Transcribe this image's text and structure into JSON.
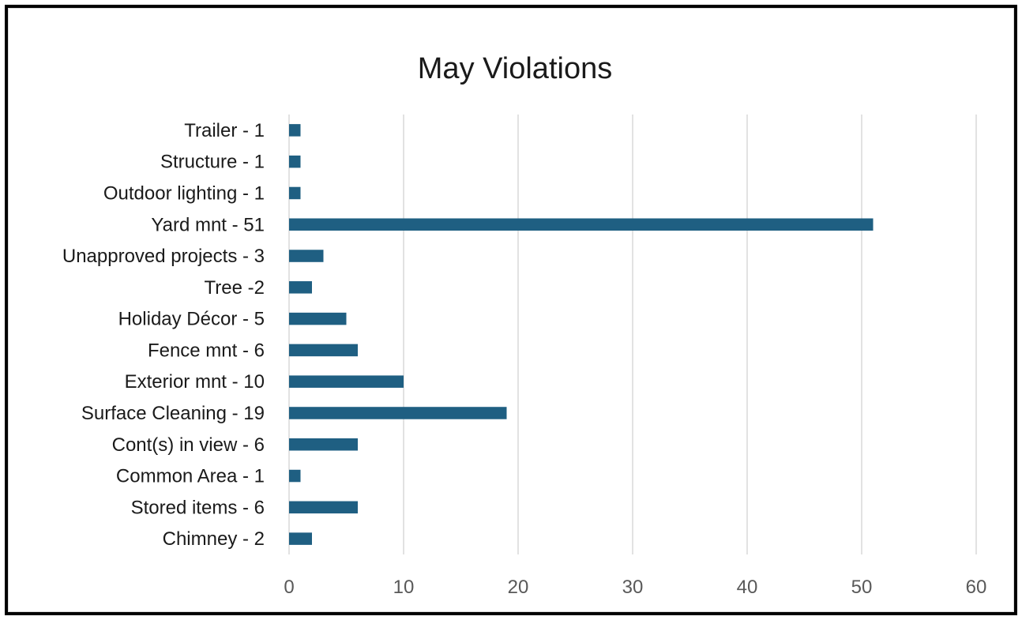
{
  "chart_data": {
    "type": "bar",
    "orientation": "horizontal",
    "title": "May Violations",
    "xlabel": "",
    "ylabel": "",
    "categories": [
      "Trailer - 1",
      "Structure - 1",
      "Outdoor lighting - 1",
      "Yard mnt - 51",
      "Unapproved projects - 3",
      "Tree -2",
      "Holiday Décor - 5",
      "Fence mnt - 6",
      "Exterior mnt - 10",
      "Surface Cleaning - 19",
      "Cont(s) in view - 6",
      "Common Area - 1",
      "Stored items - 6",
      "Chimney - 2"
    ],
    "values": [
      1,
      1,
      1,
      51,
      3,
      2,
      5,
      6,
      10,
      19,
      6,
      1,
      6,
      2
    ],
    "xlim": [
      0,
      60
    ],
    "xticks": [
      "0",
      "10",
      "20",
      "30",
      "40",
      "50",
      "60"
    ],
    "grid": "vertical",
    "legend": "none",
    "bar_color": "#1f5f82",
    "grid_color": "#d9d9d9"
  }
}
